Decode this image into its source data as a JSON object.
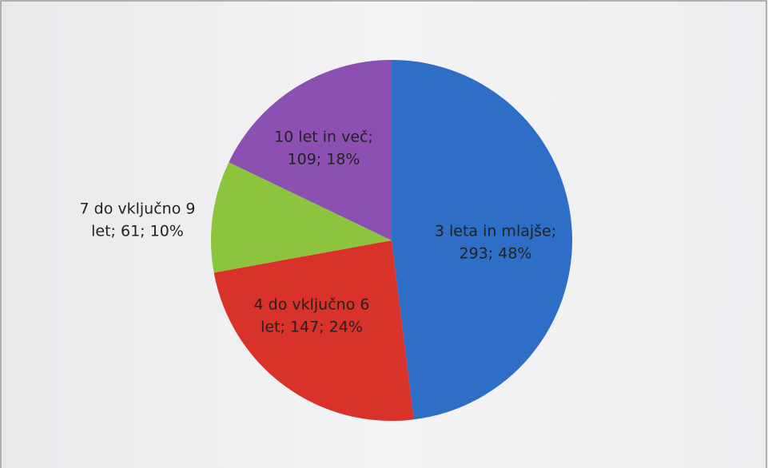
{
  "chart_data": {
    "type": "pie",
    "values": [
      293,
      147,
      61,
      109
    ],
    "value_labels": [
      [
        "3 leta in mlajše;",
        "293; 48%"
      ],
      [
        "4 do vključno 6",
        "let; 147; 24%"
      ],
      [
        "7 do vključno 9",
        "let; 61; 10%"
      ],
      [
        "10 let in več;",
        "109; 18%"
      ]
    ],
    "colors": [
      "#2f6ec6",
      "#d9322a",
      "#8dc43d",
      "#8c4fb2"
    ]
  }
}
